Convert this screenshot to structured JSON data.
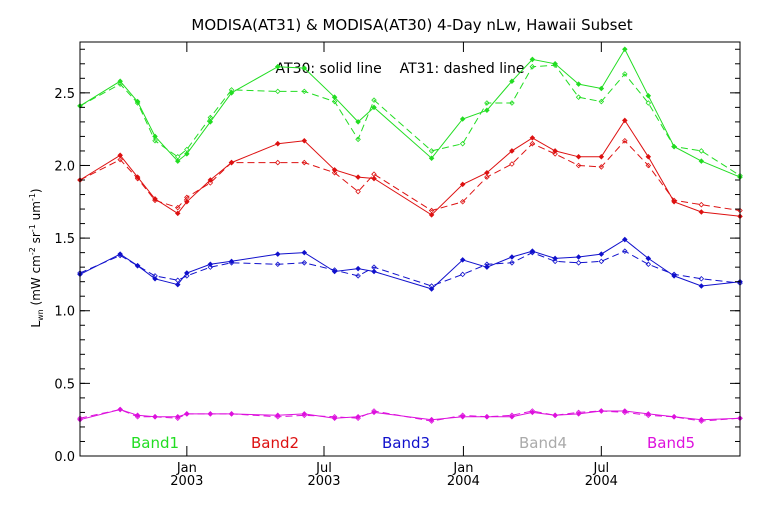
{
  "chart_data": {
    "type": "line",
    "title": "MODISA(AT31) & MODISA(AT30) 4-Day nLw, Hawaii Subset",
    "annotation": "AT30: solid line    AT31: dashed line",
    "ylabel": "L_wn (mW cm^-2 sr^-1 um^-1)",
    "ylabel_parts": {
      "L": "L",
      "sub": "wn",
      "rest": " (mW cm",
      "exp1": "-2",
      "sr": " sr",
      "exp2": "-1",
      "um": " um",
      "exp3": "-1",
      "close": ")"
    },
    "ylim": [
      0.0,
      2.85
    ],
    "yticks": [
      0.0,
      0.5,
      1.0,
      1.5,
      2.0,
      2.5
    ],
    "yticklabels": [
      "0.0",
      "0.5",
      "1.0",
      "1.5",
      "2.0",
      "2.5"
    ],
    "xlim": [
      "2002-08-13",
      "2004-12-31"
    ],
    "xticks": [
      {
        "date": "2003-01-01",
        "line1": "Jan",
        "line2": "2003"
      },
      {
        "date": "2003-07-01",
        "line1": "Jul",
        "line2": "2003"
      },
      {
        "date": "2004-01-01",
        "line1": "Jan",
        "line2": "2004"
      },
      {
        "date": "2004-07-01",
        "line1": "Jul",
        "line2": "2004"
      }
    ],
    "grid": false,
    "legend": [
      {
        "name": "Band1",
        "color": "#22dd22"
      },
      {
        "name": "Band2",
        "color": "#dd1111"
      },
      {
        "name": "Band3",
        "color": "#1111cc"
      },
      {
        "name": "Band4",
        "color": "#aaaaaa"
      },
      {
        "name": "Band5",
        "color": "#dd11dd"
      }
    ],
    "series": [
      {
        "band": "Band1",
        "color": "#22dd22",
        "AT30": [
          [
            "2002-08-13",
            2.41
          ],
          [
            "2002-10-05",
            2.58
          ],
          [
            "2002-10-28",
            2.44
          ],
          [
            "2002-11-20",
            2.2
          ],
          [
            "2002-12-20",
            2.03
          ],
          [
            "2003-01-01",
            2.08
          ],
          [
            "2003-02-01",
            2.3
          ],
          [
            "2003-03-01",
            2.5
          ],
          [
            "2003-05-01",
            2.68
          ],
          [
            "2003-06-05",
            2.67
          ],
          [
            "2003-07-15",
            2.47
          ],
          [
            "2003-08-15",
            2.3
          ],
          [
            "2003-09-05",
            2.4
          ],
          [
            "2003-11-20",
            2.05
          ],
          [
            "2003-12-31",
            2.32
          ],
          [
            "2004-02-01",
            2.38
          ],
          [
            "2004-03-05",
            2.58
          ],
          [
            "2004-04-01",
            2.73
          ],
          [
            "2004-05-01",
            2.7
          ],
          [
            "2004-06-01",
            2.56
          ],
          [
            "2004-07-01",
            2.53
          ],
          [
            "2004-08-01",
            2.8
          ],
          [
            "2004-09-01",
            2.48
          ],
          [
            "2004-10-05",
            2.13
          ],
          [
            "2004-11-10",
            2.03
          ],
          [
            "2004-12-31",
            1.92
          ]
        ],
        "AT31": [
          [
            "2002-08-13",
            2.41
          ],
          [
            "2002-10-05",
            2.56
          ],
          [
            "2002-10-28",
            2.43
          ],
          [
            "2002-11-20",
            2.17
          ],
          [
            "2002-12-20",
            2.06
          ],
          [
            "2003-01-01",
            2.11
          ],
          [
            "2003-02-01",
            2.33
          ],
          [
            "2003-03-01",
            2.52
          ],
          [
            "2003-05-01",
            2.51
          ],
          [
            "2003-06-05",
            2.51
          ],
          [
            "2003-07-15",
            2.44
          ],
          [
            "2003-08-15",
            2.18
          ],
          [
            "2003-09-05",
            2.45
          ],
          [
            "2003-11-20",
            2.1
          ],
          [
            "2003-12-31",
            2.15
          ],
          [
            "2004-02-01",
            2.43
          ],
          [
            "2004-03-05",
            2.43
          ],
          [
            "2004-04-01",
            2.68
          ],
          [
            "2004-05-01",
            2.69
          ],
          [
            "2004-06-01",
            2.47
          ],
          [
            "2004-07-01",
            2.44
          ],
          [
            "2004-08-01",
            2.63
          ],
          [
            "2004-09-01",
            2.43
          ],
          [
            "2004-10-05",
            2.13
          ],
          [
            "2004-11-10",
            2.1
          ],
          [
            "2004-12-31",
            1.93
          ]
        ]
      },
      {
        "band": "Band2",
        "color": "#dd1111",
        "AT30": [
          [
            "2002-08-13",
            1.9
          ],
          [
            "2002-10-05",
            2.07
          ],
          [
            "2002-10-28",
            1.92
          ],
          [
            "2002-11-20",
            1.77
          ],
          [
            "2002-12-20",
            1.67
          ],
          [
            "2003-01-01",
            1.75
          ],
          [
            "2003-02-01",
            1.9
          ],
          [
            "2003-03-01",
            2.02
          ],
          [
            "2003-05-01",
            2.15
          ],
          [
            "2003-06-05",
            2.17
          ],
          [
            "2003-07-15",
            1.97
          ],
          [
            "2003-08-15",
            1.92
          ],
          [
            "2003-09-05",
            1.91
          ],
          [
            "2003-11-20",
            1.66
          ],
          [
            "2003-12-31",
            1.87
          ],
          [
            "2004-02-01",
            1.95
          ],
          [
            "2004-03-05",
            2.1
          ],
          [
            "2004-04-01",
            2.19
          ],
          [
            "2004-05-01",
            2.1
          ],
          [
            "2004-06-01",
            2.06
          ],
          [
            "2004-07-01",
            2.06
          ],
          [
            "2004-08-01",
            2.31
          ],
          [
            "2004-09-01",
            2.06
          ],
          [
            "2004-10-05",
            1.75
          ],
          [
            "2004-11-10",
            1.68
          ],
          [
            "2004-12-31",
            1.65
          ]
        ],
        "AT31": [
          [
            "2002-08-13",
            1.9
          ],
          [
            "2002-10-05",
            2.04
          ],
          [
            "2002-10-28",
            1.91
          ],
          [
            "2002-11-20",
            1.76
          ],
          [
            "2002-12-20",
            1.71
          ],
          [
            "2003-01-01",
            1.78
          ],
          [
            "2003-02-01",
            1.88
          ],
          [
            "2003-03-01",
            2.02
          ],
          [
            "2003-05-01",
            2.02
          ],
          [
            "2003-06-05",
            2.02
          ],
          [
            "2003-07-15",
            1.95
          ],
          [
            "2003-08-15",
            1.82
          ],
          [
            "2003-09-05",
            1.94
          ],
          [
            "2003-11-20",
            1.69
          ],
          [
            "2003-12-31",
            1.75
          ],
          [
            "2004-02-01",
            1.92
          ],
          [
            "2004-03-05",
            2.01
          ],
          [
            "2004-04-01",
            2.15
          ],
          [
            "2004-05-01",
            2.08
          ],
          [
            "2004-06-01",
            2.0
          ],
          [
            "2004-07-01",
            1.99
          ],
          [
            "2004-08-01",
            2.17
          ],
          [
            "2004-09-01",
            2.0
          ],
          [
            "2004-10-05",
            1.76
          ],
          [
            "2004-11-10",
            1.73
          ],
          [
            "2004-12-31",
            1.69
          ]
        ]
      },
      {
        "band": "Band3",
        "color": "#1111cc",
        "AT30": [
          [
            "2002-08-13",
            1.25
          ],
          [
            "2002-10-05",
            1.39
          ],
          [
            "2002-10-28",
            1.31
          ],
          [
            "2002-11-20",
            1.22
          ],
          [
            "2002-12-20",
            1.18
          ],
          [
            "2003-01-01",
            1.26
          ],
          [
            "2003-02-01",
            1.32
          ],
          [
            "2003-03-01",
            1.34
          ],
          [
            "2003-05-01",
            1.39
          ],
          [
            "2003-06-05",
            1.4
          ],
          [
            "2003-07-15",
            1.27
          ],
          [
            "2003-08-15",
            1.29
          ],
          [
            "2003-09-05",
            1.27
          ],
          [
            "2003-11-20",
            1.15
          ],
          [
            "2003-12-31",
            1.35
          ],
          [
            "2004-02-01",
            1.3
          ],
          [
            "2004-03-05",
            1.37
          ],
          [
            "2004-04-01",
            1.41
          ],
          [
            "2004-05-01",
            1.36
          ],
          [
            "2004-06-01",
            1.37
          ],
          [
            "2004-07-01",
            1.39
          ],
          [
            "2004-08-01",
            1.49
          ],
          [
            "2004-09-01",
            1.36
          ],
          [
            "2004-10-05",
            1.24
          ],
          [
            "2004-11-10",
            1.17
          ],
          [
            "2004-12-31",
            1.2
          ]
        ],
        "AT31": [
          [
            "2002-08-13",
            1.26
          ],
          [
            "2002-10-05",
            1.38
          ],
          [
            "2002-10-28",
            1.31
          ],
          [
            "2002-11-20",
            1.24
          ],
          [
            "2002-12-20",
            1.21
          ],
          [
            "2003-01-01",
            1.24
          ],
          [
            "2003-02-01",
            1.3
          ],
          [
            "2003-03-01",
            1.33
          ],
          [
            "2003-05-01",
            1.32
          ],
          [
            "2003-06-05",
            1.33
          ],
          [
            "2003-07-15",
            1.28
          ],
          [
            "2003-08-15",
            1.24
          ],
          [
            "2003-09-05",
            1.3
          ],
          [
            "2003-11-20",
            1.17
          ],
          [
            "2003-12-31",
            1.25
          ],
          [
            "2004-02-01",
            1.32
          ],
          [
            "2004-03-05",
            1.33
          ],
          [
            "2004-04-01",
            1.4
          ],
          [
            "2004-05-01",
            1.34
          ],
          [
            "2004-06-01",
            1.33
          ],
          [
            "2004-07-01",
            1.34
          ],
          [
            "2004-08-01",
            1.41
          ],
          [
            "2004-09-01",
            1.32
          ],
          [
            "2004-10-05",
            1.25
          ],
          [
            "2004-11-10",
            1.22
          ],
          [
            "2004-12-31",
            1.19
          ]
        ]
      },
      {
        "band": "Band5",
        "color": "#dd11dd",
        "AT30": [
          [
            "2002-08-13",
            0.25
          ],
          [
            "2002-10-05",
            0.32
          ],
          [
            "2002-10-28",
            0.28
          ],
          [
            "2002-11-20",
            0.27
          ],
          [
            "2002-12-20",
            0.27
          ],
          [
            "2003-01-01",
            0.29
          ],
          [
            "2003-02-01",
            0.29
          ],
          [
            "2003-03-01",
            0.29
          ],
          [
            "2003-05-01",
            0.28
          ],
          [
            "2003-06-05",
            0.29
          ],
          [
            "2003-07-15",
            0.26
          ],
          [
            "2003-08-15",
            0.27
          ],
          [
            "2003-09-05",
            0.3
          ],
          [
            "2003-11-20",
            0.25
          ],
          [
            "2003-12-31",
            0.27
          ],
          [
            "2004-02-01",
            0.27
          ],
          [
            "2004-03-05",
            0.27
          ],
          [
            "2004-04-01",
            0.3
          ],
          [
            "2004-05-01",
            0.28
          ],
          [
            "2004-06-01",
            0.29
          ],
          [
            "2004-07-01",
            0.31
          ],
          [
            "2004-08-01",
            0.31
          ],
          [
            "2004-09-01",
            0.29
          ],
          [
            "2004-10-05",
            0.27
          ],
          [
            "2004-11-10",
            0.25
          ],
          [
            "2004-12-31",
            0.26
          ]
        ],
        "AT31": [
          [
            "2002-08-13",
            0.26
          ],
          [
            "2002-10-05",
            0.32
          ],
          [
            "2002-10-28",
            0.27
          ],
          [
            "2002-11-20",
            0.27
          ],
          [
            "2002-12-20",
            0.26
          ],
          [
            "2003-01-01",
            0.29
          ],
          [
            "2003-02-01",
            0.29
          ],
          [
            "2003-03-01",
            0.29
          ],
          [
            "2003-05-01",
            0.27
          ],
          [
            "2003-06-05",
            0.28
          ],
          [
            "2003-07-15",
            0.27
          ],
          [
            "2003-08-15",
            0.26
          ],
          [
            "2003-09-05",
            0.31
          ],
          [
            "2003-11-20",
            0.24
          ],
          [
            "2003-12-31",
            0.28
          ],
          [
            "2004-02-01",
            0.27
          ],
          [
            "2004-03-05",
            0.28
          ],
          [
            "2004-04-01",
            0.31
          ],
          [
            "2004-05-01",
            0.28
          ],
          [
            "2004-06-01",
            0.3
          ],
          [
            "2004-07-01",
            0.31
          ],
          [
            "2004-08-01",
            0.3
          ],
          [
            "2004-09-01",
            0.28
          ],
          [
            "2004-10-05",
            0.27
          ],
          [
            "2004-11-10",
            0.24
          ],
          [
            "2004-12-31",
            0.26
          ]
        ]
      }
    ]
  }
}
